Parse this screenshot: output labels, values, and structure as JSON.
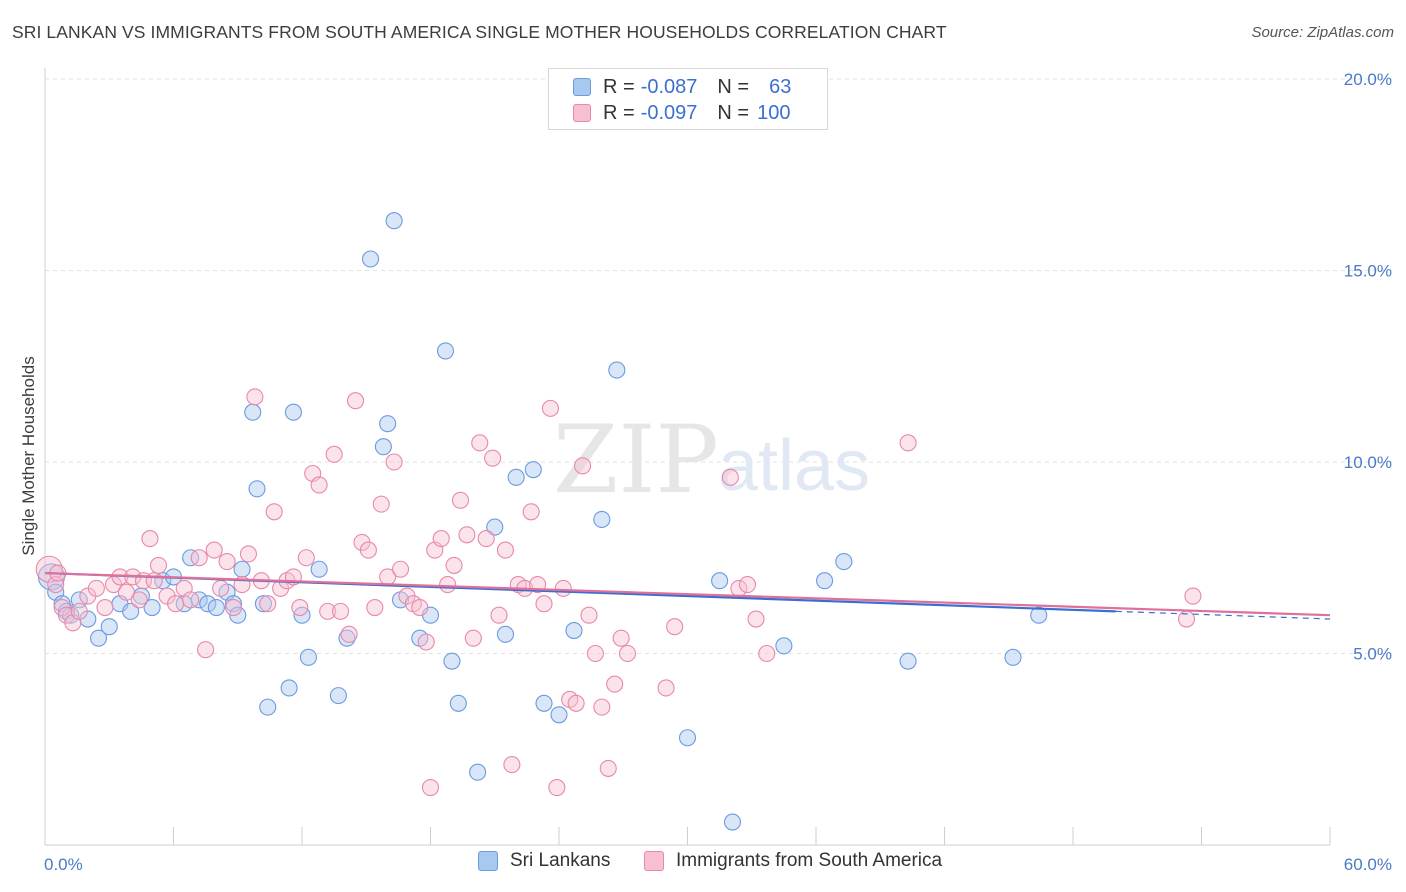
{
  "title": "SRI LANKAN VS IMMIGRANTS FROM SOUTH AMERICA SINGLE MOTHER HOUSEHOLDS CORRELATION CHART",
  "source": "Source: ZipAtlas.com",
  "watermark": {
    "zip": "ZIP",
    "atlas": "atlas"
  },
  "legend": {
    "rows": [
      {
        "r_label": "R =",
        "r_value": "-0.087",
        "n_label": "N =",
        "n_value": "63",
        "color": "#a9c8f0",
        "border": "#6a9be0"
      },
      {
        "r_label": "R =",
        "r_value": "-0.097",
        "n_label": "N =",
        "n_value": "100",
        "color": "#f7c0d2",
        "border": "#e888aa"
      }
    ]
  },
  "bottom_legend": [
    {
      "label": "Sri Lankans",
      "color": "#a9c8f0",
      "border": "#6a9be0"
    },
    {
      "label": "Immigrants from South America",
      "color": "#f7c0d2",
      "border": "#e888aa"
    }
  ],
  "chart_data": {
    "type": "scatter",
    "ylabel": "Single Mother Households",
    "xlim": [
      0,
      60
    ],
    "ylim": [
      0,
      20
    ],
    "x_tick_labels": [
      {
        "value": 0,
        "label": "0.0%"
      },
      {
        "value": 60,
        "label": "60.0%"
      }
    ],
    "y_tick_labels": [
      {
        "value": 5,
        "label": "5.0%"
      },
      {
        "value": 10,
        "label": "10.0%"
      },
      {
        "value": 15,
        "label": "15.0%"
      },
      {
        "value": 20,
        "label": "20.0%"
      }
    ],
    "grid": true,
    "series": [
      {
        "name": "Sri Lankans",
        "color": "#6a9be0",
        "fill": "#a9c8f0",
        "line_color": "#3a6fd0",
        "trend": {
          "x": [
            0,
            50
          ],
          "y": [
            7.1,
            6.1
          ],
          "dash_to": [
            60,
            5.9
          ]
        },
        "points": [
          [
            0.3,
            7.0
          ],
          [
            0.5,
            6.6
          ],
          [
            0.8,
            6.3
          ],
          [
            1.0,
            6.1
          ],
          [
            1.2,
            6.0
          ],
          [
            1.6,
            6.4
          ],
          [
            2.0,
            5.9
          ],
          [
            2.5,
            5.4
          ],
          [
            3.0,
            5.7
          ],
          [
            3.5,
            6.3
          ],
          [
            4.0,
            6.1
          ],
          [
            4.5,
            6.5
          ],
          [
            5.0,
            6.2
          ],
          [
            5.5,
            6.9
          ],
          [
            6.0,
            7.0
          ],
          [
            6.5,
            6.3
          ],
          [
            6.8,
            7.5
          ],
          [
            7.2,
            6.4
          ],
          [
            7.6,
            6.3
          ],
          [
            8.0,
            6.2
          ],
          [
            8.5,
            6.6
          ],
          [
            8.8,
            6.3
          ],
          [
            9.0,
            6.0
          ],
          [
            9.2,
            7.2
          ],
          [
            9.7,
            11.3
          ],
          [
            9.9,
            9.3
          ],
          [
            10.2,
            6.3
          ],
          [
            10.4,
            3.6
          ],
          [
            11.4,
            4.1
          ],
          [
            11.6,
            11.3
          ],
          [
            12.0,
            6.0
          ],
          [
            12.3,
            4.9
          ],
          [
            12.8,
            7.2
          ],
          [
            13.7,
            3.9
          ],
          [
            14.1,
            5.4
          ],
          [
            15.2,
            15.3
          ],
          [
            15.8,
            10.4
          ],
          [
            16.0,
            11.0
          ],
          [
            16.3,
            16.3
          ],
          [
            16.6,
            6.4
          ],
          [
            17.5,
            5.4
          ],
          [
            18.0,
            6.0
          ],
          [
            18.7,
            12.9
          ],
          [
            19.0,
            4.8
          ],
          [
            19.3,
            3.7
          ],
          [
            20.2,
            1.9
          ],
          [
            21.0,
            8.3
          ],
          [
            21.5,
            5.5
          ],
          [
            22.0,
            9.6
          ],
          [
            22.8,
            9.8
          ],
          [
            23.3,
            3.7
          ],
          [
            24.0,
            3.4
          ],
          [
            24.7,
            5.6
          ],
          [
            26.0,
            8.5
          ],
          [
            26.7,
            12.4
          ],
          [
            30.0,
            2.8
          ],
          [
            31.5,
            6.9
          ],
          [
            32.1,
            0.6
          ],
          [
            34.5,
            5.2
          ],
          [
            36.4,
            6.9
          ],
          [
            37.3,
            7.4
          ],
          [
            40.3,
            4.8
          ],
          [
            45.2,
            4.9
          ],
          [
            46.4,
            6.0
          ]
        ]
      },
      {
        "name": "Immigrants from South America",
        "color": "#e888aa",
        "fill": "#f7c0d2",
        "line_color": "#e0709a",
        "trend": {
          "x": [
            0,
            60
          ],
          "y": [
            7.1,
            6.0
          ]
        },
        "points": [
          [
            0.2,
            7.2
          ],
          [
            0.5,
            6.8
          ],
          [
            0.8,
            6.2
          ],
          [
            1.0,
            6.0
          ],
          [
            1.3,
            5.8
          ],
          [
            1.6,
            6.1
          ],
          [
            2.0,
            6.5
          ],
          [
            2.4,
            6.7
          ],
          [
            2.8,
            6.2
          ],
          [
            3.2,
            6.8
          ],
          [
            3.5,
            7.0
          ],
          [
            3.8,
            6.6
          ],
          [
            4.1,
            7.0
          ],
          [
            4.4,
            6.4
          ],
          [
            4.6,
            6.9
          ],
          [
            4.9,
            8.0
          ],
          [
            5.1,
            6.9
          ],
          [
            5.3,
            7.3
          ],
          [
            5.7,
            6.5
          ],
          [
            6.1,
            6.3
          ],
          [
            6.5,
            6.7
          ],
          [
            6.8,
            6.4
          ],
          [
            7.2,
            7.5
          ],
          [
            7.5,
            5.1
          ],
          [
            7.9,
            7.7
          ],
          [
            8.2,
            6.7
          ],
          [
            8.5,
            7.4
          ],
          [
            8.8,
            6.2
          ],
          [
            9.2,
            6.8
          ],
          [
            9.5,
            7.6
          ],
          [
            9.8,
            11.7
          ],
          [
            10.1,
            6.9
          ],
          [
            10.4,
            6.3
          ],
          [
            10.7,
            8.7
          ],
          [
            11.0,
            6.7
          ],
          [
            11.3,
            6.9
          ],
          [
            11.6,
            7.0
          ],
          [
            11.9,
            6.2
          ],
          [
            12.2,
            7.5
          ],
          [
            12.5,
            9.7
          ],
          [
            12.8,
            9.4
          ],
          [
            13.2,
            6.1
          ],
          [
            13.5,
            10.2
          ],
          [
            13.8,
            6.1
          ],
          [
            14.2,
            5.5
          ],
          [
            14.5,
            11.6
          ],
          [
            14.8,
            7.9
          ],
          [
            15.1,
            7.7
          ],
          [
            15.4,
            6.2
          ],
          [
            15.7,
            8.9
          ],
          [
            16.0,
            7.0
          ],
          [
            16.3,
            10.0
          ],
          [
            16.6,
            7.2
          ],
          [
            16.9,
            6.5
          ],
          [
            17.2,
            6.3
          ],
          [
            17.5,
            6.2
          ],
          [
            17.8,
            5.3
          ],
          [
            18.0,
            1.5
          ],
          [
            18.2,
            7.7
          ],
          [
            18.5,
            8.0
          ],
          [
            18.8,
            6.8
          ],
          [
            19.1,
            7.3
          ],
          [
            19.4,
            9.0
          ],
          [
            19.7,
            8.1
          ],
          [
            20.0,
            5.4
          ],
          [
            20.3,
            10.5
          ],
          [
            20.6,
            8.0
          ],
          [
            20.9,
            10.1
          ],
          [
            21.2,
            6.0
          ],
          [
            21.5,
            7.7
          ],
          [
            21.8,
            2.1
          ],
          [
            22.1,
            6.8
          ],
          [
            22.4,
            6.7
          ],
          [
            22.7,
            8.7
          ],
          [
            23.0,
            6.8
          ],
          [
            23.3,
            6.3
          ],
          [
            23.6,
            11.4
          ],
          [
            23.9,
            1.5
          ],
          [
            24.2,
            6.7
          ],
          [
            24.5,
            3.8
          ],
          [
            24.8,
            3.7
          ],
          [
            25.1,
            9.9
          ],
          [
            25.4,
            6.0
          ],
          [
            25.7,
            5.0
          ],
          [
            26.0,
            3.6
          ],
          [
            26.3,
            2.0
          ],
          [
            26.6,
            4.2
          ],
          [
            26.9,
            5.4
          ],
          [
            27.2,
            5.0
          ],
          [
            29.0,
            4.1
          ],
          [
            29.4,
            5.7
          ],
          [
            32.0,
            9.6
          ],
          [
            32.4,
            6.7
          ],
          [
            32.8,
            6.8
          ],
          [
            33.2,
            5.9
          ],
          [
            33.7,
            5.0
          ],
          [
            40.3,
            10.5
          ],
          [
            53.3,
            5.9
          ],
          [
            53.6,
            6.5
          ],
          [
            0.6,
            7.1
          ]
        ]
      }
    ]
  }
}
